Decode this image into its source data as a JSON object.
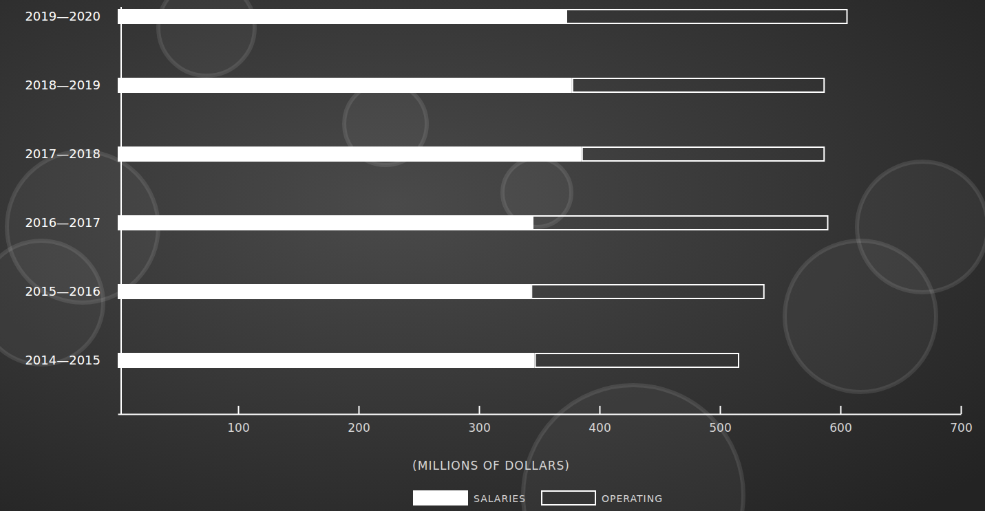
{
  "chart_data": {
    "type": "bar",
    "orientation": "horizontal",
    "stacked": true,
    "x_label": "(MILLIONS OF DOLLARS)",
    "categories": [
      "2019—2020",
      "2018—2019",
      "2017—2018",
      "2016—2017",
      "2015—2016",
      "2014—2015"
    ],
    "series": [
      {
        "name": "SALARIES",
        "color": "#ffffff",
        "values": [
          372,
          377,
          385,
          344,
          343,
          346
        ]
      },
      {
        "name": "OPERATING",
        "color": "#ffffff",
        "values": [
          234,
          210,
          202,
          246,
          194,
          170
        ]
      }
    ],
    "xlim": [
      0,
      700
    ],
    "xticks": [
      100,
      200,
      300,
      400,
      500,
      600,
      700
    ],
    "grid": false,
    "legend": "bottom"
  }
}
